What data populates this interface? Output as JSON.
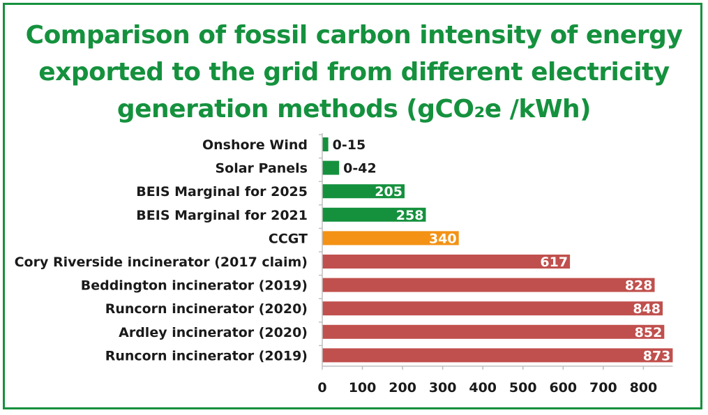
{
  "title_lines": [
    "Comparison of fossil carbon intensity of energy",
    "exported to the grid from different electricity",
    "generation methods (gCO₂e /kWh)"
  ],
  "colors": {
    "title": "#15913e",
    "border": "#15913e",
    "green": "#15913e",
    "orange": "#f39214",
    "red": "#c0504d"
  },
  "chart_data": {
    "type": "bar",
    "orientation": "horizontal",
    "title": "Comparison of fossil carbon intensity of energy exported to the grid from different electricity generation methods (gCO₂e /kWh)",
    "categories": [
      "Onshore Wind",
      "Solar Panels",
      "BEIS Marginal for 2025",
      "BEIS Marginal for 2021",
      "CCGT",
      "Cory Riverside incinerator (2017 claim)",
      "Beddington incinerator (2019)",
      "Runcorn incinerator (2020)",
      "Ardley incinerator (2020)",
      "Runcorn incinerator (2019)"
    ],
    "values": [
      15,
      42,
      205,
      258,
      340,
      617,
      828,
      848,
      852,
      873
    ],
    "value_labels": [
      "0-15",
      "0-42",
      "205",
      "258",
      "340",
      "617",
      "828",
      "848",
      "852",
      "873"
    ],
    "bar_colors": [
      "green",
      "green",
      "green",
      "green",
      "orange",
      "red",
      "red",
      "red",
      "red",
      "red"
    ],
    "x_ticks": [
      0,
      100,
      200,
      300,
      400,
      500,
      600,
      700,
      800
    ],
    "xlim": [
      0,
      873
    ],
    "grid": false,
    "legend": "none"
  }
}
